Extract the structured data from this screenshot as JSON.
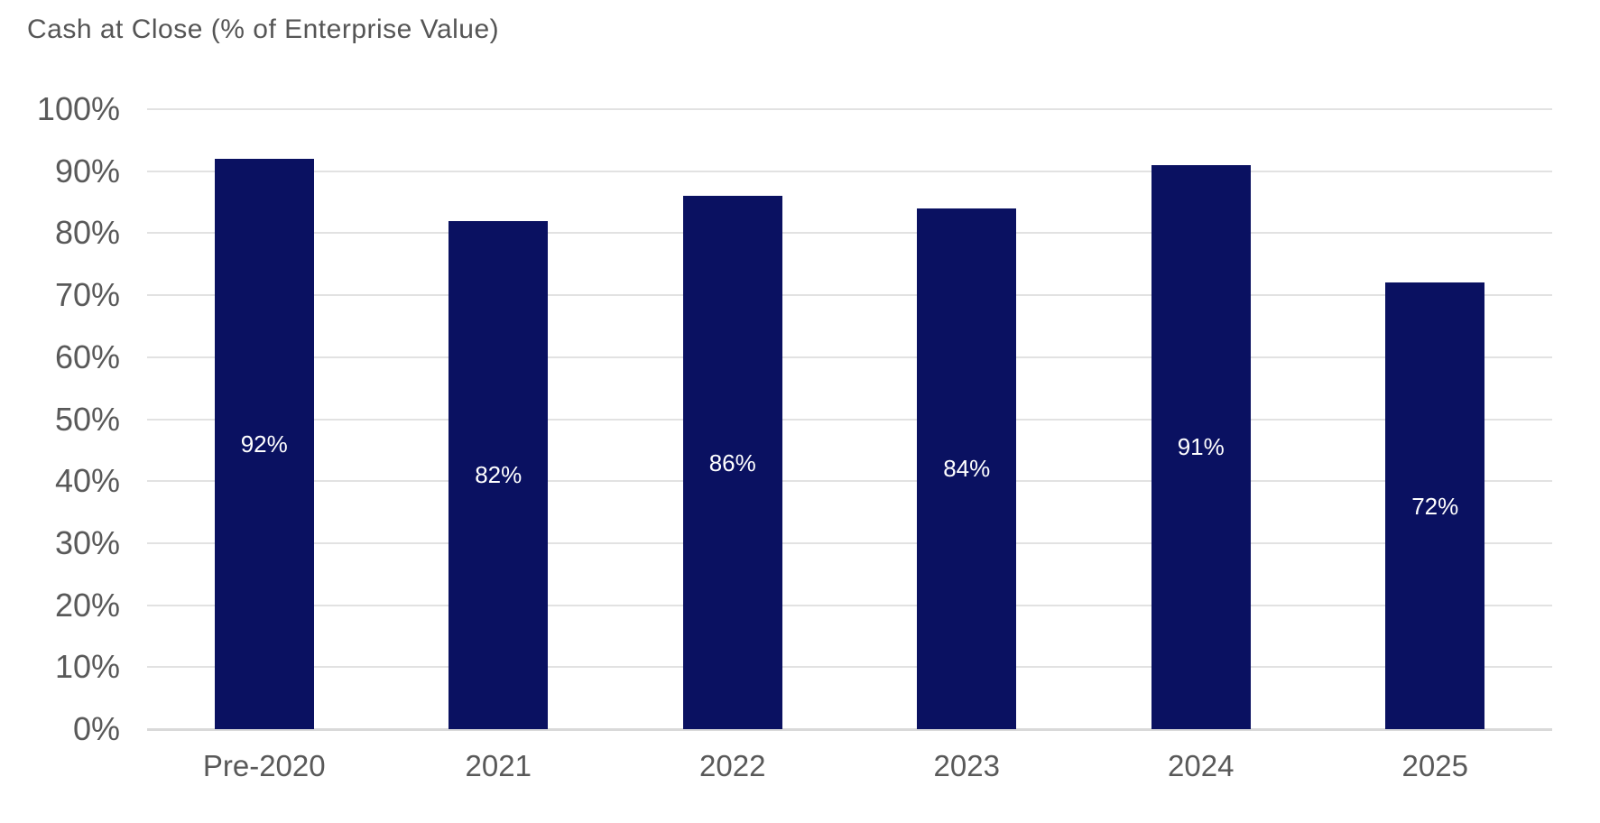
{
  "page": {
    "background": "#ffffff"
  },
  "chart_data": {
    "type": "bar",
    "title": "Cash at Close (% of Enterprise Value)",
    "categories": [
      "Pre-2020",
      "2021",
      "2022",
      "2023",
      "2024",
      "2025"
    ],
    "values": [
      92,
      82,
      86,
      84,
      91,
      72
    ],
    "value_labels": [
      "92%",
      "82%",
      "86%",
      "84%",
      "91%",
      "72%"
    ],
    "xlabel": "",
    "ylabel": "",
    "ylim": [
      0,
      100
    ],
    "ytick_step": 10,
    "ytick_labels": [
      "0%",
      "10%",
      "20%",
      "30%",
      "40%",
      "50%",
      "60%",
      "70%",
      "80%",
      "90%",
      "100%"
    ],
    "grid": true,
    "legend": "none",
    "colors": {
      "bar": "#0a1161",
      "bar_value_label": "#ffffff",
      "axis_text": "#595959",
      "title_text": "#555555",
      "gridline": "#e2e2e2",
      "baseline": "#d9d9d9"
    }
  }
}
